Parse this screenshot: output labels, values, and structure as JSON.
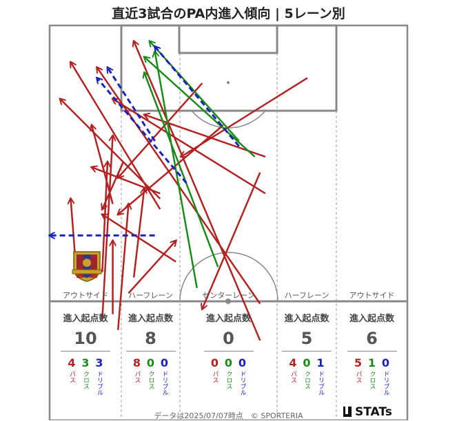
{
  "title": "直近3試合のPA内進入傾向 | 5レーン別",
  "colors": {
    "pass": "#b22222",
    "cross": "#1a8a1a",
    "dribble": "#1a23b8",
    "line": "#888888"
  },
  "lanes": [
    {
      "label": "アウトサイド",
      "head": "進入起点数",
      "total": "10",
      "pass": "4",
      "cross": "3",
      "dribble": "3"
    },
    {
      "label": "ハーフレーン",
      "head": "進入起点数",
      "total": "8",
      "pass": "8",
      "cross": "0",
      "dribble": "0"
    },
    {
      "label": "センターレーン",
      "head": "進入起点数",
      "total": "0",
      "pass": "0",
      "cross": "0",
      "dribble": "0"
    },
    {
      "label": "ハーフレーン",
      "head": "進入起点数",
      "total": "5",
      "pass": "4",
      "cross": "0",
      "dribble": "1"
    },
    {
      "label": "アウトサイド",
      "head": "進入起点数",
      "total": "6",
      "pass": "5",
      "cross": "1",
      "dribble": "0"
    }
  ],
  "legend": {
    "pass": "パス",
    "cross": "クロス",
    "dribble": "ドリブル"
  },
  "footer": "データは2025/07/07時点　© SPORTERIA",
  "logo_text": "STATs",
  "chart_data": {
    "type": "scatter",
    "title": "直近3試合のPA内進入傾向 | 5レーン別",
    "categories": [
      "アウトサイド",
      "ハーフレーン",
      "センターレーン",
      "ハーフレーン",
      "アウトサイド"
    ],
    "series": [
      {
        "name": "パス",
        "values": [
          4,
          8,
          0,
          4,
          5
        ]
      },
      {
        "name": "クロス",
        "values": [
          3,
          0,
          0,
          0,
          1
        ]
      },
      {
        "name": "ドリブル",
        "values": [
          3,
          0,
          0,
          1,
          0
        ]
      }
    ],
    "arrows": [
      {
        "kind": "pass",
        "from": [
          8,
          27
        ],
        "to": [
          21,
          32
        ]
      },
      {
        "kind": "pass",
        "from": [
          4,
          7
        ],
        "to": [
          21,
          35
        ]
      },
      {
        "kind": "pass",
        "from": [
          2,
          14
        ],
        "to": [
          21,
          33
        ]
      },
      {
        "kind": "pass",
        "from": [
          8,
          19
        ],
        "to": [
          12,
          34
        ]
      },
      {
        "kind": "pass",
        "from": [
          10,
          35
        ],
        "to": [
          14,
          26
        ]
      },
      {
        "kind": "pass",
        "from": [
          12,
          21
        ],
        "to": [
          10,
          56
        ]
      },
      {
        "kind": "pass",
        "from": [
          11,
          26
        ],
        "to": [
          10,
          47
        ]
      },
      {
        "kind": "pass",
        "from": [
          12,
          41
        ],
        "to": [
          12,
          55
        ]
      },
      {
        "kind": "pass",
        "from": [
          18,
          31
        ],
        "to": [
          16,
          48
        ]
      },
      {
        "kind": "pass",
        "from": [
          24,
          41
        ],
        "to": [
          15,
          51
        ]
      },
      {
        "kind": "pass",
        "from": [
          13,
          36
        ],
        "to": [
          33,
          19
        ]
      },
      {
        "kind": "pass",
        "from": [
          13,
          29
        ],
        "to": [
          29,
          11
        ]
      },
      {
        "kind": "pass",
        "from": [
          29,
          54
        ],
        "to": [
          40,
          28
        ]
      },
      {
        "kind": "pass",
        "from": [
          25,
          25
        ],
        "to": [
          49,
          10
        ]
      },
      {
        "kind": "pass",
        "from": [
          9,
          8
        ],
        "to": [
          40,
          53
        ]
      },
      {
        "kind": "pass",
        "from": [
          18,
          17
        ],
        "to": [
          41,
          25
        ]
      },
      {
        "kind": "pass",
        "from": [
          12,
          14
        ],
        "to": [
          41,
          32
        ]
      },
      {
        "kind": "pass",
        "from": [
          10,
          36
        ],
        "to": [
          24,
          45
        ]
      },
      {
        "kind": "pass",
        "from": [
          16,
          3
        ],
        "to": [
          40,
          60
        ]
      },
      {
        "kind": "pass",
        "from": [
          15,
          34
        ],
        "to": [
          13,
          58
        ]
      },
      {
        "kind": "pass",
        "from": [
          4,
          33
        ],
        "to": [
          5,
          46
        ]
      },
      {
        "kind": "cross",
        "from": [
          18,
          6
        ],
        "to": [
          39,
          25
        ]
      },
      {
        "kind": "cross",
        "from": [
          19,
          3
        ],
        "to": [
          36,
          22
        ]
      },
      {
        "kind": "cross",
        "from": [
          18,
          9
        ],
        "to": [
          32,
          46
        ]
      },
      {
        "kind": "cross",
        "from": [
          20,
          5
        ],
        "to": [
          28,
          50
        ]
      },
      {
        "kind": "dribble",
        "from": [
          20,
          4
        ],
        "to": [
          36,
          23
        ]
      },
      {
        "kind": "dribble",
        "from": [
          11,
          8
        ],
        "to": [
          20,
          22
        ]
      },
      {
        "kind": "dribble",
        "from": [
          9,
          10
        ],
        "to": [
          26,
          30
        ]
      },
      {
        "kind": "dribble",
        "from": [
          0,
          40
        ],
        "to": [
          20,
          40
        ]
      }
    ]
  }
}
